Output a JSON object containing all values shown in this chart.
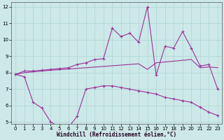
{
  "xlabel": "Windchill (Refroidissement éolien,°C)",
  "x": [
    0,
    1,
    2,
    3,
    4,
    5,
    6,
    7,
    8,
    9,
    10,
    11,
    12,
    13,
    14,
    15,
    16,
    17,
    18,
    19,
    20,
    21,
    22,
    23
  ],
  "line_spiky_y": [
    7.9,
    8.1,
    8.1,
    8.15,
    8.2,
    8.25,
    8.3,
    8.5,
    8.6,
    8.8,
    8.85,
    10.7,
    10.2,
    10.4,
    9.85,
    12.0,
    7.85,
    9.6,
    9.5,
    10.5,
    9.5,
    8.4,
    8.5,
    7.0
  ],
  "line_flat_y": [
    7.9,
    8.0,
    8.05,
    8.1,
    8.15,
    8.18,
    8.22,
    8.26,
    8.3,
    8.34,
    8.38,
    8.42,
    8.46,
    8.5,
    8.54,
    8.2,
    8.6,
    8.65,
    8.7,
    8.75,
    8.8,
    8.3,
    8.35,
    8.3
  ],
  "line_low_y": [
    7.9,
    7.75,
    6.2,
    5.85,
    5.0,
    4.7,
    4.65,
    5.35,
    7.0,
    7.1,
    7.2,
    7.2,
    7.1,
    7.0,
    6.9,
    6.8,
    6.7,
    6.5,
    6.4,
    6.3,
    6.2,
    5.9,
    5.6,
    5.4
  ],
  "line_color": "#993399",
  "bg_color": "#cce8e8",
  "grid_color": "#aed4d4",
  "ylim": [
    5,
    12
  ],
  "yticks": [
    5,
    6,
    7,
    8,
    9,
    10,
    11,
    12
  ],
  "xticks": [
    0,
    1,
    2,
    3,
    4,
    5,
    6,
    7,
    8,
    9,
    10,
    11,
    12,
    13,
    14,
    15,
    16,
    17,
    18,
    19,
    20,
    21,
    22,
    23
  ],
  "axis_fontsize": 5.5,
  "tick_fontsize": 5.0,
  "linewidth": 0.8,
  "marker": "+",
  "markersize": 3.5,
  "markerwidth": 0.8
}
